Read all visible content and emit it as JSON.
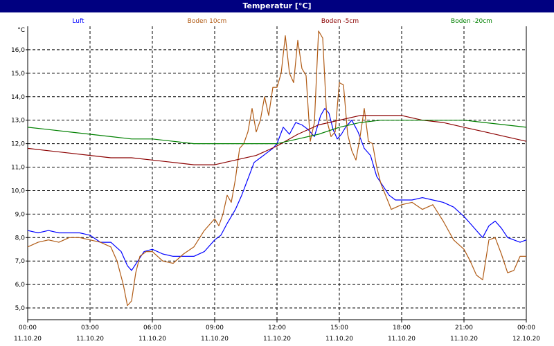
{
  "chart_data": {
    "type": "line",
    "title": "Temperatur [°C]",
    "ylabel": "°C",
    "ylim": [
      4.5,
      17.0
    ],
    "y_ticks": [
      5.0,
      6.0,
      7.0,
      8.0,
      9.0,
      10.0,
      11.0,
      12.0,
      13.0,
      14.0,
      15.0,
      16.0
    ],
    "y_tick_labels": [
      "5,0",
      "6,0",
      "7,0",
      "8,0",
      "9,0",
      "10,0",
      "11,0",
      "12,0",
      "13,0",
      "14,0",
      "15,0",
      "16,0"
    ],
    "xlim": [
      0,
      24
    ],
    "x_ticks": [
      0,
      3,
      6,
      9,
      12,
      15,
      18,
      21,
      24
    ],
    "x_tick_labels": [
      [
        "00:00",
        "11.10.20"
      ],
      [
        "03:00",
        "11.10.20"
      ],
      [
        "06:00",
        "11.10.20"
      ],
      [
        "09:00",
        "11.10.20"
      ],
      [
        "12:00",
        "11.10.20"
      ],
      [
        "15:00",
        "11.10.20"
      ],
      [
        "18:00",
        "11.10.20"
      ],
      [
        "21:00",
        "11.10.20"
      ],
      [
        "00:00",
        "12.10.20"
      ]
    ],
    "grid": true,
    "legend_placement": "top",
    "series": [
      {
        "name": "Luft",
        "color": "#0000ff",
        "x": [
          0,
          0.5,
          1,
          1.5,
          2,
          2.5,
          3,
          3.5,
          4,
          4.5,
          4.8,
          5,
          5.3,
          5.6,
          6,
          6.5,
          7,
          7.5,
          8,
          8.5,
          9,
          9.3,
          9.6,
          10,
          10.3,
          10.6,
          10.9,
          11.2,
          11.5,
          11.8,
          12,
          12.3,
          12.6,
          12.9,
          13.2,
          13.5,
          13.8,
          14.1,
          14.3,
          14.5,
          14.7,
          14.9,
          15.1,
          15.3,
          15.6,
          15.9,
          16.2,
          16.5,
          16.8,
          17.1,
          17.4,
          17.7,
          18,
          18.5,
          19,
          19.5,
          20,
          20.5,
          21,
          21.3,
          21.6,
          21.9,
          22.2,
          22.5,
          22.8,
          23.1,
          23.4,
          23.7,
          24
        ],
        "y": [
          8.3,
          8.2,
          8.3,
          8.2,
          8.2,
          8.2,
          8.1,
          7.8,
          7.8,
          7.4,
          6.8,
          6.6,
          7.0,
          7.4,
          7.5,
          7.3,
          7.2,
          7.2,
          7.2,
          7.4,
          7.9,
          8.1,
          8.6,
          9.2,
          9.8,
          10.5,
          11.2,
          11.4,
          11.6,
          11.8,
          12.0,
          12.7,
          12.4,
          12.9,
          12.8,
          12.6,
          12.3,
          13.2,
          13.5,
          13.3,
          12.6,
          12.2,
          12.4,
          12.7,
          13.0,
          12.5,
          11.8,
          11.5,
          10.6,
          10.2,
          9.8,
          9.6,
          9.6,
          9.6,
          9.7,
          9.6,
          9.5,
          9.3,
          8.9,
          8.6,
          8.3,
          8.0,
          8.5,
          8.7,
          8.4,
          8.0,
          7.9,
          7.8,
          7.9
        ]
      },
      {
        "name": "Boden 10cm",
        "color": "#b05a14",
        "x": [
          0,
          0.5,
          1,
          1.5,
          2,
          2.5,
          3,
          3.5,
          4,
          4.3,
          4.6,
          4.8,
          5.0,
          5.2,
          5.4,
          5.7,
          6,
          6.5,
          7,
          7.5,
          8,
          8.5,
          9,
          9.2,
          9.4,
          9.6,
          9.8,
          10,
          10.2,
          10.4,
          10.6,
          10.8,
          11,
          11.2,
          11.4,
          11.6,
          11.8,
          12,
          12.2,
          12.4,
          12.6,
          12.8,
          13,
          13.2,
          13.4,
          13.6,
          13.8,
          14,
          14.2,
          14.4,
          14.6,
          14.8,
          15,
          15.2,
          15.4,
          15.6,
          15.8,
          16,
          16.2,
          16.4,
          16.6,
          16.8,
          17,
          17.5,
          18,
          18.5,
          19,
          19.5,
          20,
          20.5,
          21,
          21.3,
          21.6,
          21.9,
          22.2,
          22.5,
          22.8,
          23.1,
          23.4,
          23.7,
          24
        ],
        "y": [
          7.6,
          7.8,
          7.9,
          7.8,
          8.0,
          8.0,
          7.9,
          7.8,
          7.6,
          7.0,
          6.0,
          5.1,
          5.3,
          6.5,
          7.2,
          7.4,
          7.4,
          7.0,
          6.9,
          7.3,
          7.6,
          8.3,
          8.8,
          8.5,
          9.0,
          9.8,
          9.5,
          10.5,
          11.8,
          12.0,
          12.5,
          13.5,
          12.5,
          13.0,
          14.0,
          13.2,
          14.4,
          14.4,
          15.0,
          16.6,
          15.0,
          14.6,
          16.4,
          15.2,
          14.9,
          12.1,
          12.9,
          16.8,
          16.5,
          13.0,
          12.3,
          12.5,
          14.6,
          14.5,
          12.4,
          11.7,
          11.3,
          12.3,
          13.5,
          12.1,
          12.0,
          11.0,
          10.3,
          9.2,
          9.4,
          9.5,
          9.2,
          9.4,
          8.7,
          7.9,
          7.5,
          7.0,
          6.4,
          6.2,
          7.9,
          8.0,
          7.3,
          6.5,
          6.6,
          7.2,
          7.2
        ]
      },
      {
        "name": "Boden -5cm",
        "color": "#8b0000",
        "x": [
          0,
          1,
          2,
          3,
          4,
          5,
          6,
          7,
          8,
          9,
          10,
          11,
          12,
          13,
          14,
          15,
          16,
          17,
          18,
          19,
          20,
          21,
          22,
          23,
          24
        ],
        "y": [
          11.8,
          11.7,
          11.6,
          11.5,
          11.4,
          11.4,
          11.3,
          11.2,
          11.1,
          11.1,
          11.3,
          11.5,
          11.9,
          12.4,
          12.8,
          13.0,
          13.2,
          13.2,
          13.2,
          13.0,
          12.9,
          12.7,
          12.5,
          12.3,
          12.1
        ]
      },
      {
        "name": "Boden -20cm",
        "color": "#008000",
        "x": [
          0,
          1,
          2,
          3,
          4,
          5,
          6,
          7,
          8,
          9,
          10,
          11,
          12,
          13,
          14,
          15,
          16,
          17,
          18,
          19,
          20,
          21,
          22,
          23,
          24
        ],
        "y": [
          12.7,
          12.6,
          12.5,
          12.4,
          12.3,
          12.2,
          12.2,
          12.1,
          12.0,
          12.0,
          12.0,
          12.0,
          12.0,
          12.2,
          12.4,
          12.7,
          12.9,
          13.0,
          13.0,
          13.0,
          13.0,
          13.0,
          12.9,
          12.8,
          12.7
        ]
      }
    ]
  }
}
